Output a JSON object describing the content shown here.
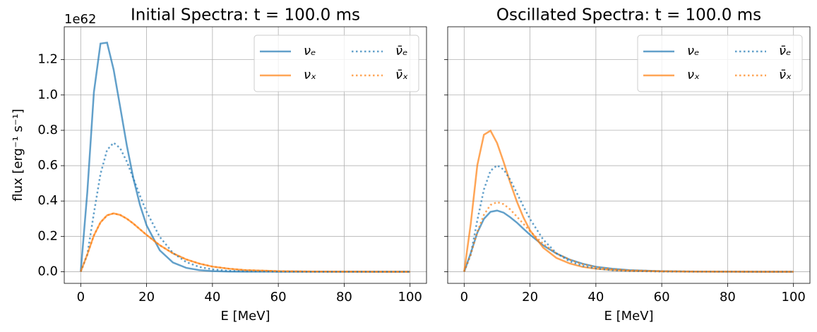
{
  "chart_data": [
    {
      "type": "line",
      "title": "Initial Spectra: t = 100.0 ms",
      "xlabel": "E [MeV]",
      "ylabel": "flux [erg⁻¹ s⁻¹]",
      "offset_text": "1e62",
      "x": [
        0,
        2,
        4,
        6,
        8,
        10,
        12,
        14,
        16,
        18,
        20,
        24,
        28,
        32,
        36,
        40,
        45,
        50,
        60,
        70,
        80,
        90,
        100
      ],
      "xlim": [
        -5,
        105
      ],
      "xticks": [
        0,
        20,
        40,
        60,
        80,
        100
      ],
      "ylim": [
        -0.066,
        1.386
      ],
      "yticks": [
        {
          "value": 0,
          "label": "0.0"
        },
        0.2,
        0.4,
        0.6,
        0.8,
        {
          "value": 1,
          "label": "1.0"
        },
        1.2
      ],
      "show_ytick_labels": true,
      "grid": true,
      "legend": "upper right",
      "legend_columns": 2,
      "series": [
        {
          "name": "νₑ",
          "color": "#1f77b4",
          "linestyle": "solid",
          "values": [
            0,
            0.45,
            1.016,
            1.291,
            1.296,
            1.143,
            0.93,
            0.714,
            0.527,
            0.377,
            0.262,
            0.121,
            0.052,
            0.022,
            0.009,
            0.0035,
            0.001,
            0.0003,
            0,
            0,
            0,
            0,
            0
          ]
        },
        {
          "name": "νₓ",
          "color": "#ff7f0e",
          "linestyle": "solid",
          "values": [
            0,
            0.098,
            0.205,
            0.279,
            0.319,
            0.33,
            0.321,
            0.3,
            0.272,
            0.24,
            0.208,
            0.15,
            0.104,
            0.07,
            0.046,
            0.029,
            0.017,
            0.009,
            0.003,
            0.001,
            0.0002,
            0,
            0
          ]
        },
        {
          "name": "ν̄ₑ",
          "color": "#1f77b4",
          "linestyle": "dotted",
          "values": [
            0,
            0.0965,
            0.331,
            0.553,
            0.689,
            0.73,
            0.698,
            0.623,
            0.527,
            0.429,
            0.339,
            0.197,
            0.106,
            0.055,
            0.027,
            0.013,
            0.005,
            0.002,
            0.0002,
            0,
            0,
            0,
            0
          ]
        },
        {
          "name": "ν̄ₓ",
          "color": "#ff7f0e",
          "linestyle": "dotted",
          "values": [
            0,
            0.098,
            0.205,
            0.279,
            0.319,
            0.33,
            0.321,
            0.3,
            0.272,
            0.24,
            0.208,
            0.15,
            0.104,
            0.07,
            0.046,
            0.029,
            0.017,
            0.009,
            0.003,
            0.001,
            0.0002,
            0,
            0
          ]
        }
      ]
    },
    {
      "type": "line",
      "title": "Oscillated Spectra: t = 100.0 ms",
      "xlabel": "E [MeV]",
      "x": [
        0,
        2,
        4,
        6,
        8,
        10,
        12,
        14,
        16,
        18,
        20,
        24,
        28,
        32,
        36,
        40,
        45,
        50,
        60,
        70,
        80,
        90,
        100
      ],
      "xlim": [
        -5,
        105
      ],
      "xticks": [
        0,
        20,
        40,
        60,
        80,
        100
      ],
      "ylim": [
        -0.066,
        1.386
      ],
      "yticks": [
        0,
        0.2,
        0.4,
        0.6,
        0.8,
        1,
        1.2
      ],
      "show_ytick_labels": false,
      "grid": true,
      "legend": "upper right",
      "legend_columns": 2,
      "series": [
        {
          "name": "νₑ",
          "color": "#1f77b4",
          "linestyle": "solid",
          "values": [
            0,
            0.105,
            0.221,
            0.299,
            0.339,
            0.346,
            0.334,
            0.308,
            0.278,
            0.243,
            0.209,
            0.149,
            0.103,
            0.069,
            0.045,
            0.028,
            0.017,
            0.009,
            0.003,
            0.001,
            0.0002,
            0,
            0
          ]
        },
        {
          "name": "νₓ",
          "color": "#ff7f0e",
          "linestyle": "solid",
          "values": [
            0,
            0.271,
            0.603,
            0.775,
            0.798,
            0.728,
            0.62,
            0.503,
            0.397,
            0.307,
            0.234,
            0.136,
            0.078,
            0.047,
            0.027,
            0.017,
            0.009,
            0.005,
            0.002,
            0.0005,
            0.0001,
            0,
            0
          ]
        },
        {
          "name": "ν̄ₑ",
          "color": "#1f77b4",
          "linestyle": "dotted",
          "values": [
            0,
            0.097,
            0.291,
            0.465,
            0.571,
            0.602,
            0.578,
            0.52,
            0.445,
            0.369,
            0.298,
            0.182,
            0.105,
            0.059,
            0.033,
            0.018,
            0.008,
            0.004,
            0.001,
            0.0003,
            0.0001,
            0,
            0
          ]
        },
        {
          "name": "ν̄ₓ",
          "color": "#ff7f0e",
          "linestyle": "dotted",
          "values": [
            0,
            0.097,
            0.225,
            0.322,
            0.378,
            0.394,
            0.382,
            0.352,
            0.312,
            0.271,
            0.229,
            0.158,
            0.104,
            0.068,
            0.043,
            0.026,
            0.015,
            0.008,
            0.003,
            0.001,
            0.0002,
            0,
            0
          ]
        }
      ]
    }
  ]
}
